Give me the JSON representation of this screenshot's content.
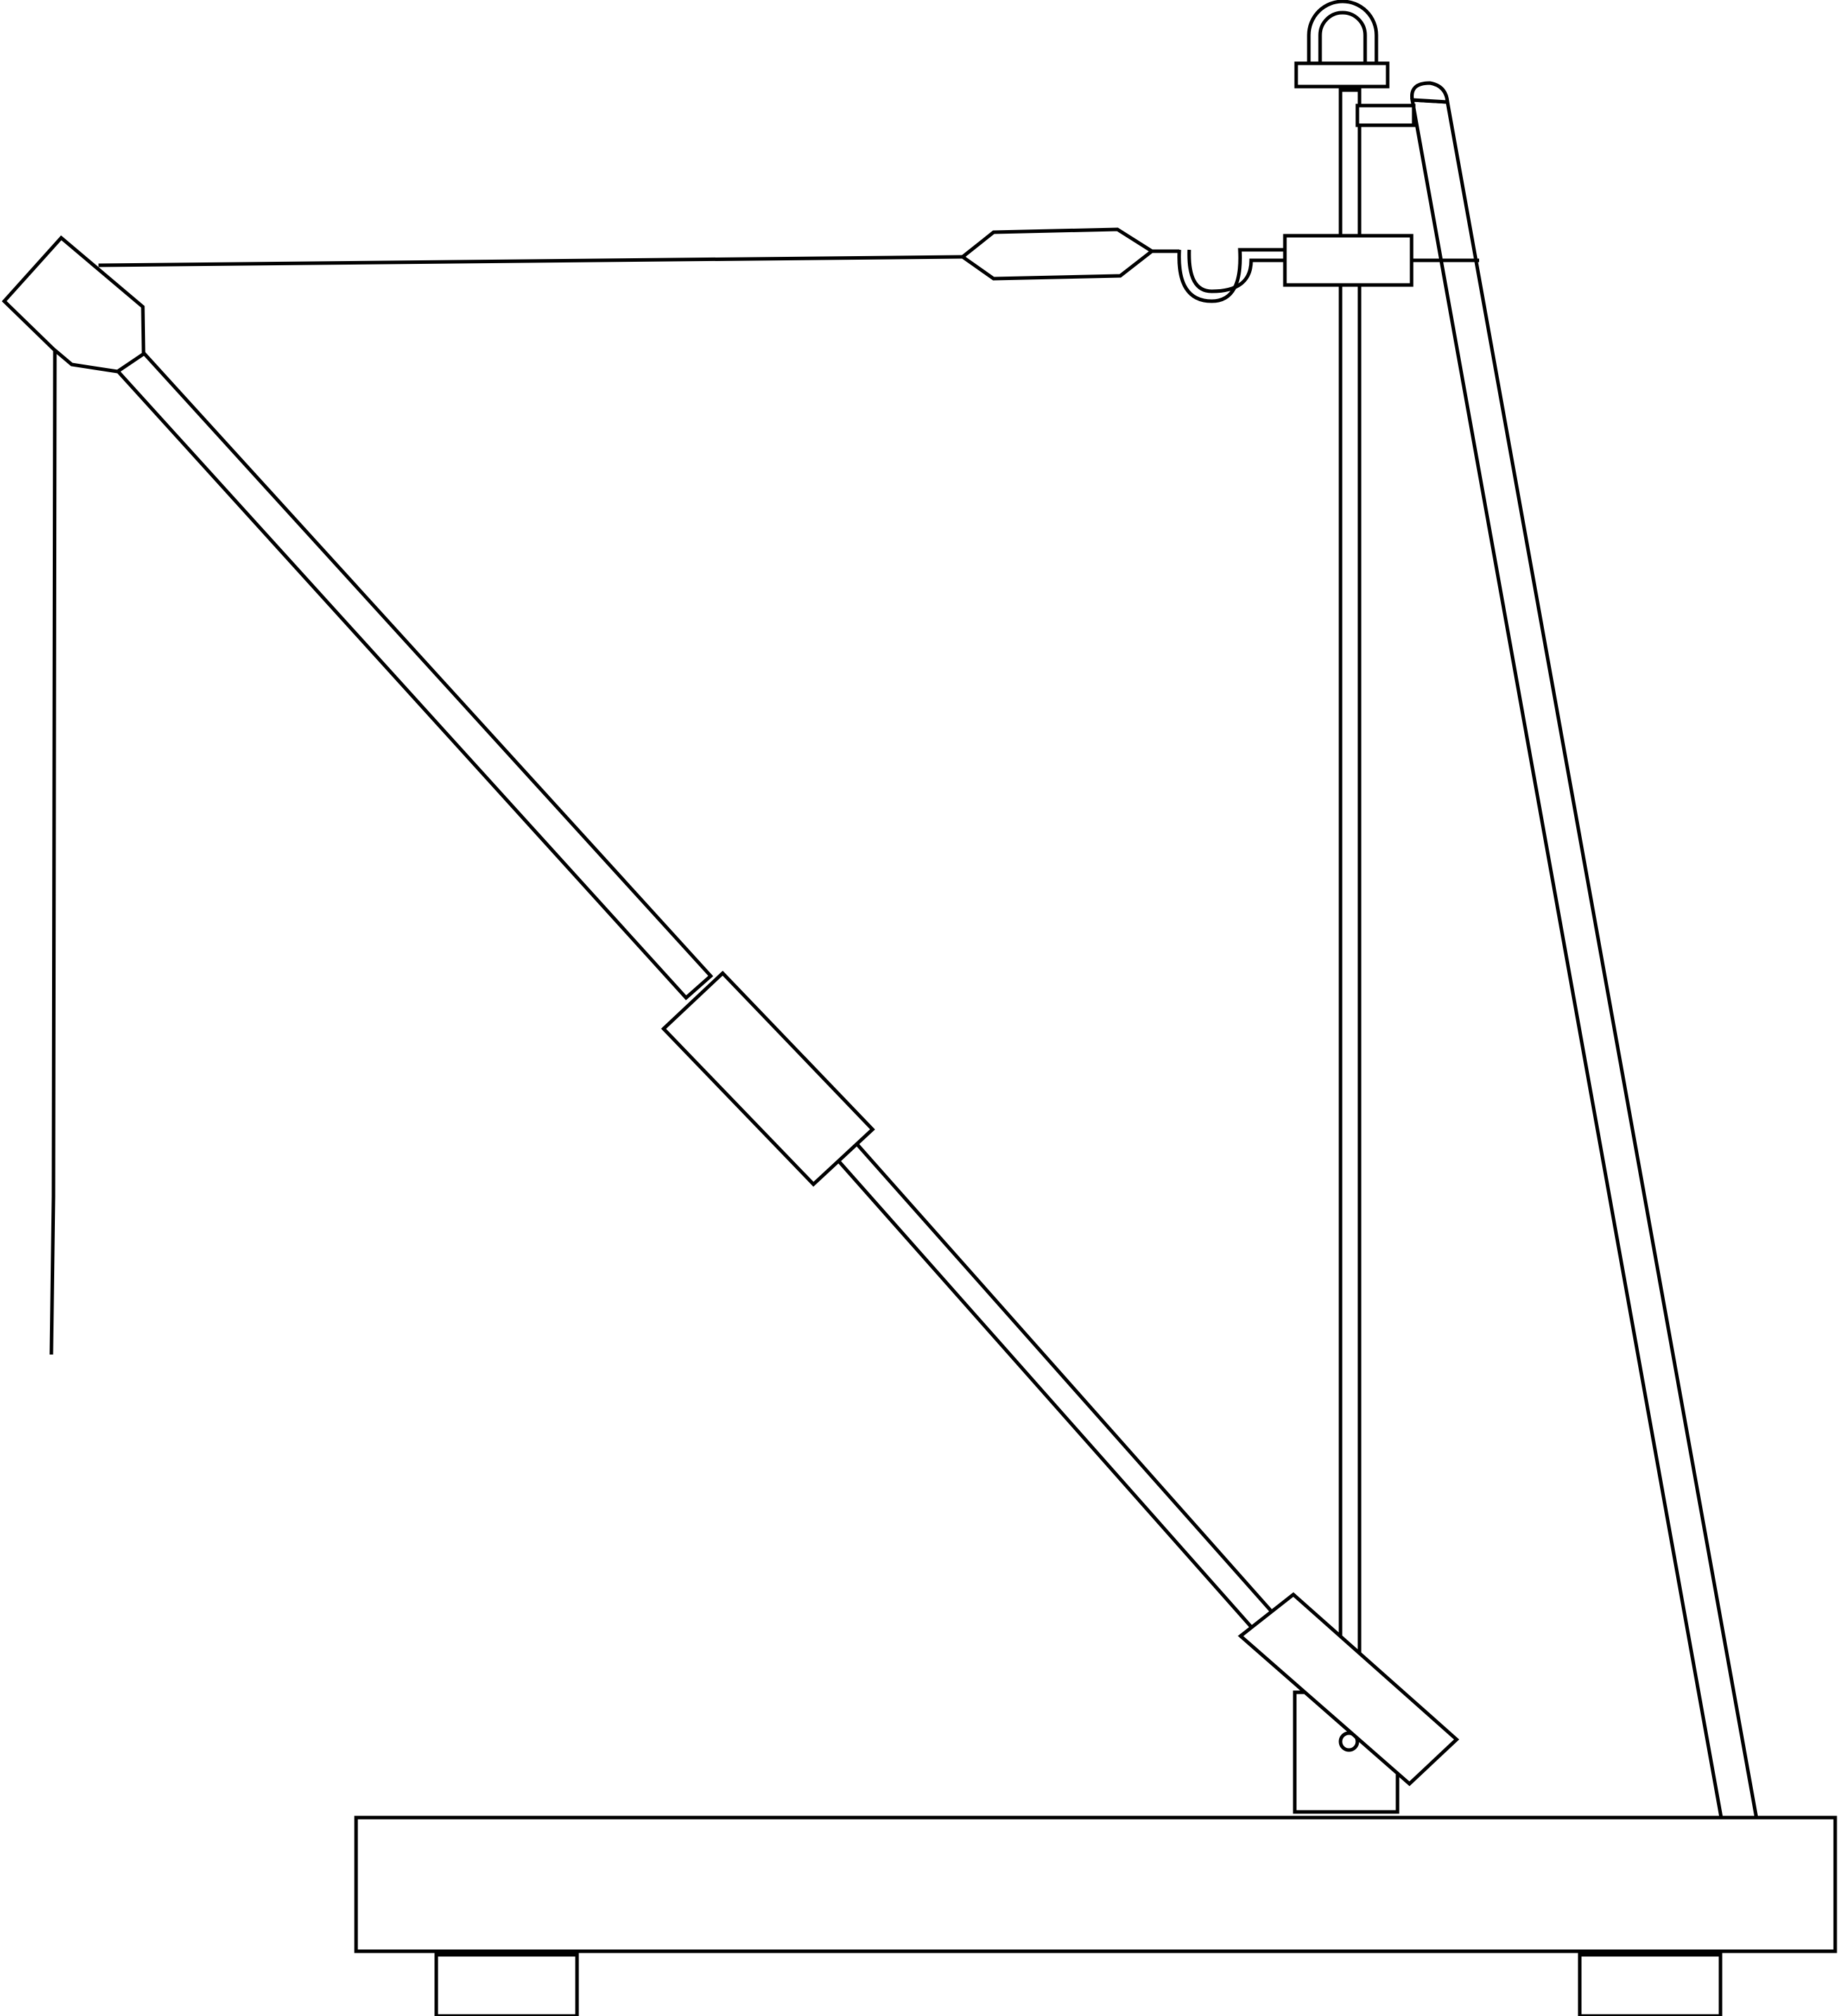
{
  "diagram": {
    "type": "line-drawing",
    "subject": "crane-boom-apparatus",
    "colors": {
      "stroke": "#000000",
      "fill": "#ffffff"
    }
  }
}
